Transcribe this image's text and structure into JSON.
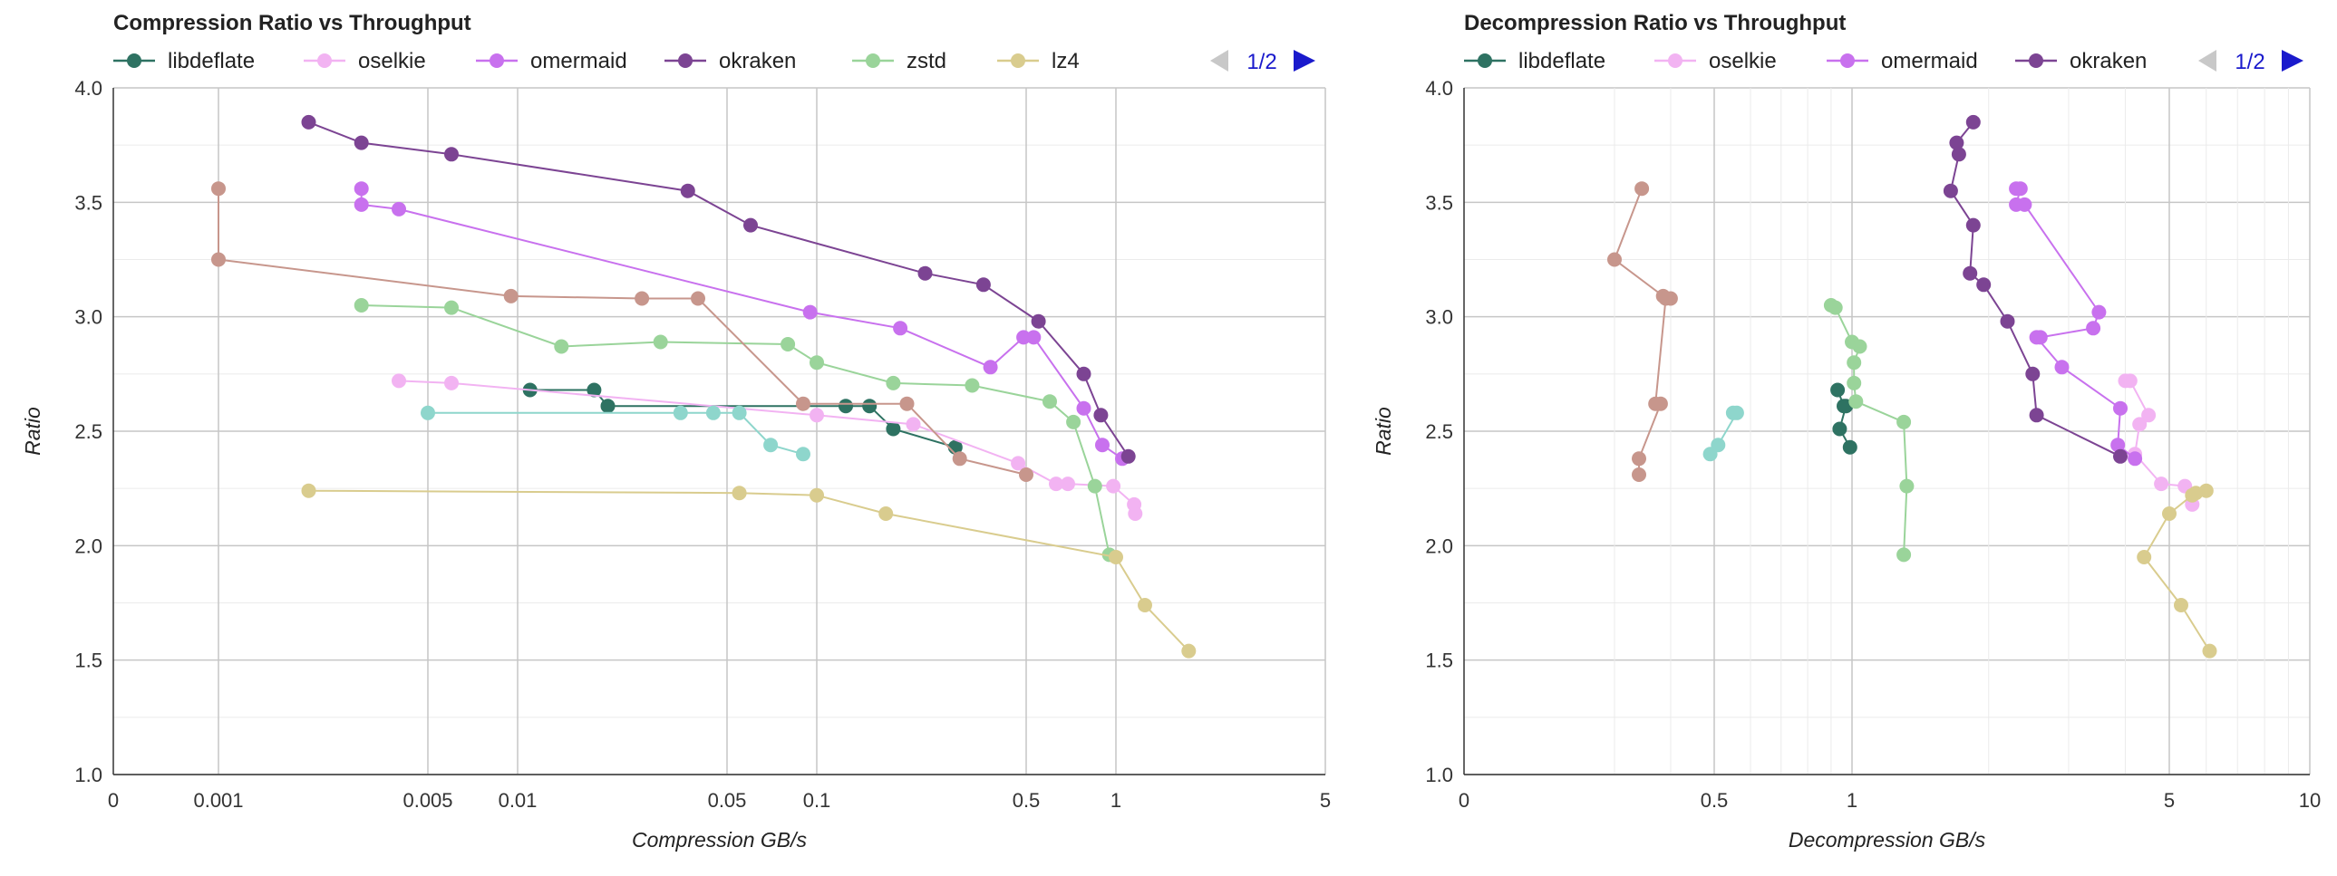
{
  "chart_data": [
    {
      "type": "line",
      "title": "Compression Ratio vs Throughput",
      "xlabel": "Compression GB/s",
      "ylabel": "Ratio",
      "x_scale": "log",
      "x_ticks": [
        0,
        0.001,
        0.005,
        0.01,
        0.05,
        0.1,
        0.5,
        1,
        5
      ],
      "x_tick_labels": [
        "0",
        "0.001",
        "0.005",
        "0.01",
        "0.05",
        "0.1",
        "0.5",
        "1",
        "5"
      ],
      "xlim": [
        0,
        5
      ],
      "ylim": [
        1.0,
        4.0
      ],
      "y_ticks": [
        1.0,
        1.5,
        2.0,
        2.5,
        3.0,
        3.5,
        4.0
      ],
      "y_tick_labels": [
        "1.0",
        "1.5",
        "2.0",
        "2.5",
        "3.0",
        "3.5",
        "4.0"
      ],
      "grid": true,
      "legend": {
        "position": "top",
        "entries": [
          "libdeflate",
          "oselkie",
          "omermaid",
          "okraken",
          "zstd",
          "lz4"
        ],
        "page": "1/2"
      },
      "series": [
        {
          "name": "libdeflate",
          "color": "#2e7262",
          "points": [
            [
              0.011,
              2.68
            ],
            [
              0.018,
              2.68
            ],
            [
              0.02,
              2.61
            ],
            [
              0.125,
              2.61
            ],
            [
              0.15,
              2.61
            ],
            [
              0.18,
              2.51
            ],
            [
              0.29,
              2.43
            ]
          ]
        },
        {
          "name": "oselkie",
          "color": "#f2b3f2",
          "points": [
            [
              0.004,
              2.72
            ],
            [
              0.006,
              2.71
            ],
            [
              0.1,
              2.57
            ],
            [
              0.21,
              2.53
            ],
            [
              0.47,
              2.36
            ],
            [
              0.63,
              2.27
            ],
            [
              0.69,
              2.27
            ],
            [
              0.98,
              2.26
            ],
            [
              1.15,
              2.18
            ],
            [
              1.16,
              2.14
            ]
          ]
        },
        {
          "name": "omermaid",
          "color": "#c871ee",
          "points": [
            [
              0.003,
              3.56
            ],
            [
              0.003,
              3.49
            ],
            [
              0.004,
              3.47
            ],
            [
              0.095,
              3.02
            ],
            [
              0.19,
              2.95
            ],
            [
              0.38,
              2.78
            ],
            [
              0.49,
              2.91
            ],
            [
              0.53,
              2.91
            ],
            [
              0.78,
              2.6
            ],
            [
              0.9,
              2.44
            ],
            [
              1.05,
              2.38
            ]
          ]
        },
        {
          "name": "okraken",
          "color": "#7c4493",
          "points": [
            [
              0.002,
              3.85
            ],
            [
              0.003,
              3.76
            ],
            [
              0.006,
              3.71
            ],
            [
              0.037,
              3.55
            ],
            [
              0.06,
              3.4
            ],
            [
              0.23,
              3.19
            ],
            [
              0.36,
              3.14
            ],
            [
              0.55,
              2.98
            ],
            [
              0.78,
              2.75
            ],
            [
              0.89,
              2.57
            ],
            [
              1.1,
              2.39
            ]
          ]
        },
        {
          "name": "zstd",
          "color": "#9ad49a",
          "points": [
            [
              0.003,
              3.05
            ],
            [
              0.006,
              3.04
            ],
            [
              0.014,
              2.87
            ],
            [
              0.03,
              2.89
            ],
            [
              0.08,
              2.88
            ],
            [
              0.1,
              2.8
            ],
            [
              0.18,
              2.71
            ],
            [
              0.33,
              2.7
            ],
            [
              0.6,
              2.63
            ],
            [
              0.72,
              2.54
            ],
            [
              0.85,
              2.26
            ],
            [
              0.95,
              1.96
            ]
          ]
        },
        {
          "name": "lz4",
          "color": "#d9cc8e",
          "points": [
            [
              0.002,
              2.24
            ],
            [
              0.055,
              2.23
            ],
            [
              0.1,
              2.22
            ],
            [
              0.17,
              2.14
            ],
            [
              1.0,
              1.95
            ],
            [
              1.25,
              1.74
            ],
            [
              1.75,
              1.54
            ]
          ]
        },
        {
          "name": "",
          "color": "#c7968c",
          "points": [
            [
              0.001,
              3.56
            ],
            [
              0.001,
              3.25
            ],
            [
              0.0095,
              3.09
            ],
            [
              0.026,
              3.08
            ],
            [
              0.04,
              3.08
            ],
            [
              0.09,
              2.62
            ],
            [
              0.2,
              2.62
            ],
            [
              0.3,
              2.38
            ],
            [
              0.5,
              2.31
            ]
          ]
        },
        {
          "name": "",
          "color": "#8ed6cc",
          "points": [
            [
              0.005,
              2.58
            ],
            [
              0.035,
              2.58
            ],
            [
              0.045,
              2.58
            ],
            [
              0.055,
              2.58
            ],
            [
              0.07,
              2.44
            ],
            [
              0.09,
              2.4
            ]
          ]
        }
      ]
    },
    {
      "type": "line",
      "title": "Decompression Ratio vs Throughput",
      "xlabel": "Decompression GB/s",
      "ylabel": "Ratio",
      "x_scale": "log",
      "x_ticks": [
        0,
        0.5,
        1,
        5,
        10
      ],
      "x_tick_labels": [
        "0",
        "0.5",
        "1",
        "5",
        "10"
      ],
      "xlim": [
        0,
        10
      ],
      "ylim": [
        1.0,
        4.0
      ],
      "y_ticks": [
        1.0,
        1.5,
        2.0,
        2.5,
        3.0,
        3.5,
        4.0
      ],
      "y_tick_labels": [
        "1.0",
        "1.5",
        "2.0",
        "2.5",
        "3.0",
        "3.5",
        "4.0"
      ],
      "grid": true,
      "legend": {
        "position": "top",
        "entries": [
          "libdeflate",
          "oselkie",
          "omermaid",
          "okraken"
        ],
        "page": "1/2"
      },
      "series": [
        {
          "name": "libdeflate",
          "color": "#2e7262",
          "points": [
            [
              0.93,
              2.68
            ],
            [
              0.96,
              2.61
            ],
            [
              0.97,
              2.61
            ],
            [
              0.94,
              2.51
            ],
            [
              0.99,
              2.43
            ]
          ]
        },
        {
          "name": "oselkie",
          "color": "#f2b3f2",
          "points": [
            [
              4.0,
              2.72
            ],
            [
              4.1,
              2.72
            ],
            [
              4.5,
              2.57
            ],
            [
              4.3,
              2.53
            ],
            [
              4.2,
              2.4
            ],
            [
              4.8,
              2.27
            ],
            [
              5.4,
              2.26
            ],
            [
              5.6,
              2.18
            ]
          ]
        },
        {
          "name": "omermaid",
          "color": "#c871ee",
          "points": [
            [
              2.3,
              3.56
            ],
            [
              2.35,
              3.56
            ],
            [
              2.3,
              3.49
            ],
            [
              2.4,
              3.49
            ],
            [
              3.5,
              3.02
            ],
            [
              3.4,
              2.95
            ],
            [
              2.6,
              2.91
            ],
            [
              2.55,
              2.91
            ],
            [
              2.9,
              2.78
            ],
            [
              3.9,
              2.6
            ],
            [
              3.85,
              2.44
            ],
            [
              4.2,
              2.38
            ]
          ]
        },
        {
          "name": "okraken",
          "color": "#7c4493",
          "points": [
            [
              1.85,
              3.85
            ],
            [
              1.7,
              3.76
            ],
            [
              1.72,
              3.71
            ],
            [
              1.65,
              3.55
            ],
            [
              1.85,
              3.4
            ],
            [
              1.82,
              3.19
            ],
            [
              1.95,
              3.14
            ],
            [
              2.2,
              2.98
            ],
            [
              2.5,
              2.75
            ],
            [
              2.55,
              2.57
            ],
            [
              3.9,
              2.39
            ]
          ]
        },
        {
          "name": "zstd",
          "color": "#9ad49a",
          "points": [
            [
              0.9,
              3.05
            ],
            [
              0.92,
              3.04
            ],
            [
              1.0,
              2.89
            ],
            [
              1.04,
              2.87
            ],
            [
              1.01,
              2.8
            ],
            [
              1.01,
              2.71
            ],
            [
              1.02,
              2.63
            ],
            [
              1.3,
              2.54
            ],
            [
              1.32,
              2.26
            ],
            [
              1.3,
              1.96
            ]
          ]
        },
        {
          "name": "lz4",
          "color": "#d9cc8e",
          "points": [
            [
              6.0,
              2.24
            ],
            [
              5.7,
              2.23
            ],
            [
              5.6,
              2.22
            ],
            [
              5.0,
              2.14
            ],
            [
              4.4,
              1.95
            ],
            [
              5.3,
              1.74
            ],
            [
              6.1,
              1.54
            ]
          ]
        },
        {
          "name": "",
          "color": "#c7968c",
          "points": [
            [
              0.345,
              3.56
            ],
            [
              0.3,
              3.25
            ],
            [
              0.385,
              3.09
            ],
            [
              0.4,
              3.08
            ],
            [
              0.39,
              3.08
            ],
            [
              0.37,
              2.62
            ],
            [
              0.38,
              2.62
            ],
            [
              0.34,
              2.38
            ],
            [
              0.34,
              2.31
            ]
          ]
        },
        {
          "name": "",
          "color": "#8ed6cc",
          "points": [
            [
              0.55,
              2.58
            ],
            [
              0.56,
              2.58
            ],
            [
              0.51,
              2.44
            ],
            [
              0.49,
              2.4
            ]
          ]
        }
      ]
    }
  ]
}
